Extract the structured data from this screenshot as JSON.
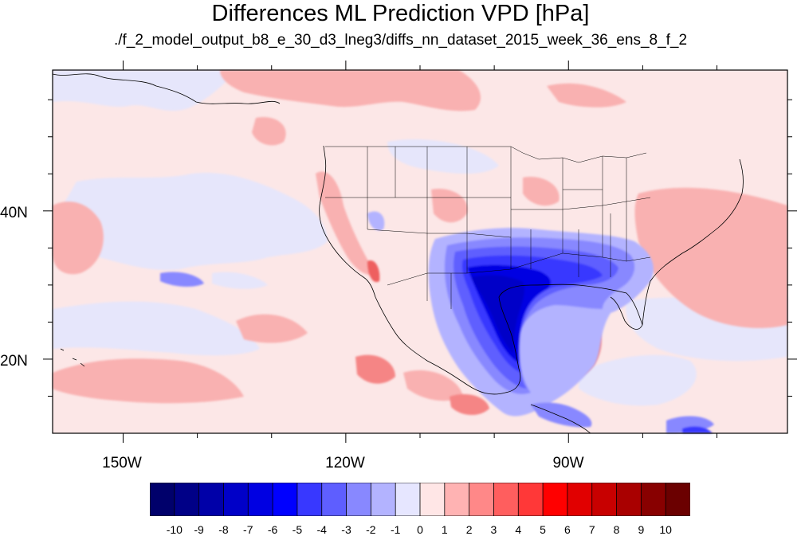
{
  "title": "Differences ML Prediction VPD [hPa]",
  "subtitle": "./f_2_model_output_b8_e_30_d3_lneg3/diffs_nn_dataset_2015_week_36_ens_8_f_2",
  "latitude_labels": [
    {
      "text": "40N",
      "value": 40
    },
    {
      "text": "20N",
      "value": 20
    }
  ],
  "longitude_labels": [
    {
      "text": "150W",
      "value": -150
    },
    {
      "text": "120W",
      "value": -120
    },
    {
      "text": "90W",
      "value": -90
    }
  ],
  "map_extent": {
    "lon_min": -159.5,
    "lon_max": -60.5,
    "lat_min": 10,
    "lat_max": 59
  },
  "colorbar": {
    "labels": [
      "-10",
      "-9",
      "-8",
      "-7",
      "-6",
      "-5",
      "-4",
      "-3",
      "-2",
      "-1",
      "0",
      "1",
      "2",
      "3",
      "4",
      "5",
      "6",
      "7",
      "8",
      "9",
      "10"
    ],
    "colors": [
      "#00006b",
      "#000087",
      "#0000a8",
      "#0000c8",
      "#0000e2",
      "#0000ff",
      "#3838ff",
      "#5e5eff",
      "#8888ff",
      "#b3b3ff",
      "#e6e6ff",
      "#ffe6e6",
      "#ffb3b3",
      "#ff8888",
      "#ff5e5e",
      "#ff3838",
      "#ff0000",
      "#e10000",
      "#c80000",
      "#a90000",
      "#880000",
      "#6b0000"
    ]
  },
  "colors": {
    "water_bg": "#fce7e7",
    "ocean_blue": "#e6e6fb",
    "coast": "#000000"
  }
}
